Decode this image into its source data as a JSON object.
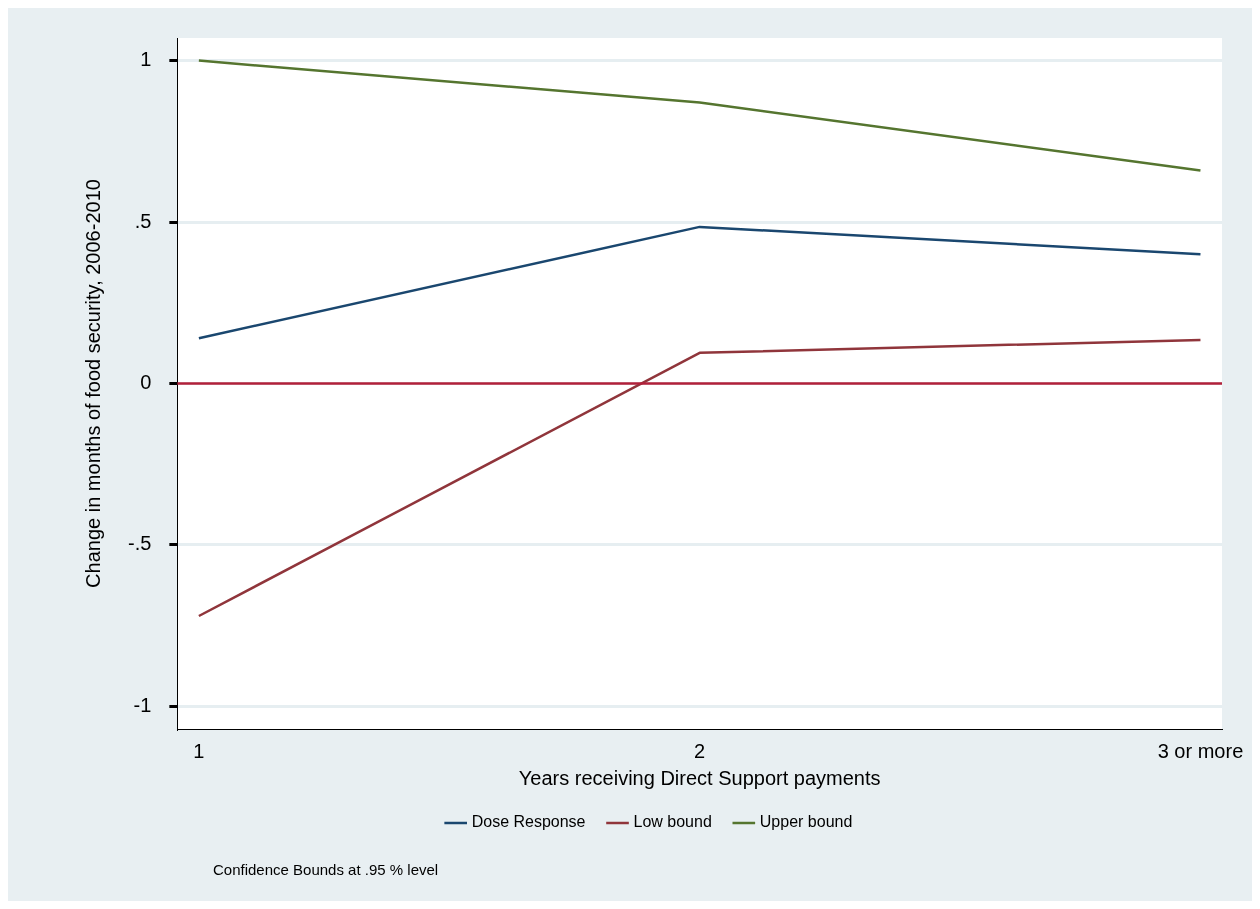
{
  "chart_data": {
    "type": "line",
    "xlabel": "Years receiving Direct Support payments",
    "ylabel": "Change in months of food security, 2006-2010",
    "x": [
      1,
      2,
      3
    ],
    "xlim": [
      0.957,
      3.043
    ],
    "xticks": [
      1,
      2,
      {
        "value": 3,
        "label": "3 or more"
      }
    ],
    "ylim": [
      -1.07,
      1.07
    ],
    "yticks": [
      -1,
      {
        "value": -0.5,
        "label": "-.5"
      },
      0,
      {
        "value": 0.5,
        "label": ".5"
      },
      1
    ],
    "series": [
      {
        "name": "Dose Response",
        "color": "#1a476f",
        "values": [
          0.14,
          0.485,
          0.4
        ]
      },
      {
        "name": "Low bound",
        "color": "#90353b",
        "values": [
          -0.72,
          0.095,
          0.135
        ]
      },
      {
        "name": "Upper bound",
        "color": "#55752f",
        "values": [
          1.0,
          0.87,
          0.66
        ]
      }
    ],
    "ref_lines": [
      {
        "axis": "y",
        "value": 0,
        "color": "#b2203a"
      }
    ],
    "grid": "y",
    "legend": "bottom",
    "marker": "none",
    "line_style": "solid",
    "annotations": [
      "Confidence Bounds at .95 % level"
    ]
  }
}
